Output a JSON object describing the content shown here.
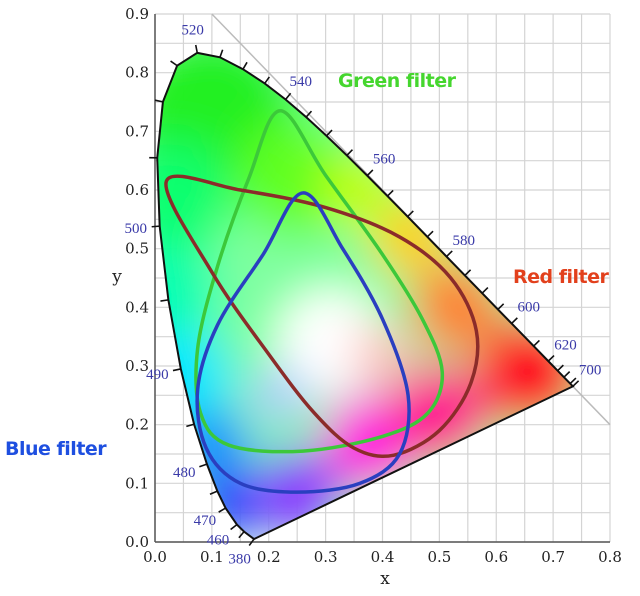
{
  "chart_data": {
    "type": "chromaticity-diagram",
    "xlabel": "x",
    "ylabel": "y",
    "xlim": [
      0,
      0.8
    ],
    "ylim": [
      0,
      0.9
    ],
    "xticks": [
      "0.0",
      "0.1",
      "0.2",
      "0.3",
      "0.4",
      "0.5",
      "0.6",
      "0.7",
      "0.8"
    ],
    "yticks": [
      "0.0",
      "0.1",
      "0.2",
      "0.3",
      "0.4",
      "0.5",
      "0.6",
      "0.7",
      "0.8",
      "0.9"
    ],
    "grid": true,
    "spectral_locus": [
      {
        "nm": 380,
        "x": 0.1741,
        "y": 0.005,
        "label": "380"
      },
      {
        "nm": 450,
        "x": 0.1566,
        "y": 0.0177
      },
      {
        "nm": 460,
        "x": 0.144,
        "y": 0.0297,
        "label": "460"
      },
      {
        "nm": 470,
        "x": 0.1241,
        "y": 0.0578,
        "label": "470"
      },
      {
        "nm": 475,
        "x": 0.1096,
        "y": 0.0868
      },
      {
        "nm": 480,
        "x": 0.0913,
        "y": 0.1327,
        "label": "480"
      },
      {
        "nm": 485,
        "x": 0.0687,
        "y": 0.2007
      },
      {
        "nm": 490,
        "x": 0.0454,
        "y": 0.295,
        "label": "490"
      },
      {
        "nm": 495,
        "x": 0.0235,
        "y": 0.4127
      },
      {
        "nm": 500,
        "x": 0.0082,
        "y": 0.5384,
        "label": "500"
      },
      {
        "nm": 505,
        "x": 0.0039,
        "y": 0.6548
      },
      {
        "nm": 510,
        "x": 0.0139,
        "y": 0.7502
      },
      {
        "nm": 515,
        "x": 0.0389,
        "y": 0.812
      },
      {
        "nm": 520,
        "x": 0.0743,
        "y": 0.8338,
        "label": "520"
      },
      {
        "nm": 525,
        "x": 0.1142,
        "y": 0.8262
      },
      {
        "nm": 530,
        "x": 0.1547,
        "y": 0.8059
      },
      {
        "nm": 535,
        "x": 0.1929,
        "y": 0.7816
      },
      {
        "nm": 540,
        "x": 0.2296,
        "y": 0.7543,
        "label": "540"
      },
      {
        "nm": 545,
        "x": 0.2658,
        "y": 0.7243
      },
      {
        "nm": 550,
        "x": 0.3016,
        "y": 0.6923
      },
      {
        "nm": 555,
        "x": 0.3373,
        "y": 0.6589
      },
      {
        "nm": 560,
        "x": 0.3731,
        "y": 0.6245,
        "label": "560"
      },
      {
        "nm": 565,
        "x": 0.4087,
        "y": 0.5896
      },
      {
        "nm": 570,
        "x": 0.4441,
        "y": 0.5547
      },
      {
        "nm": 575,
        "x": 0.4788,
        "y": 0.5202
      },
      {
        "nm": 580,
        "x": 0.5125,
        "y": 0.4866,
        "label": "580"
      },
      {
        "nm": 585,
        "x": 0.5448,
        "y": 0.4544
      },
      {
        "nm": 590,
        "x": 0.5752,
        "y": 0.4242
      },
      {
        "nm": 595,
        "x": 0.6029,
        "y": 0.3965
      },
      {
        "nm": 600,
        "x": 0.627,
        "y": 0.3725,
        "label": "600"
      },
      {
        "nm": 610,
        "x": 0.6658,
        "y": 0.334
      },
      {
        "nm": 620,
        "x": 0.6915,
        "y": 0.3083,
        "label": "620"
      },
      {
        "nm": 630,
        "x": 0.7079,
        "y": 0.292
      },
      {
        "nm": 640,
        "x": 0.719,
        "y": 0.2809
      },
      {
        "nm": 660,
        "x": 0.73,
        "y": 0.27
      },
      {
        "nm": 700,
        "x": 0.7347,
        "y": 0.2653,
        "label": "700"
      }
    ],
    "series": [
      {
        "name": "Green filter",
        "color": "#3cc83a",
        "points": [
          [
            0.22,
            0.735
          ],
          [
            0.3,
            0.625
          ],
          [
            0.4,
            0.49
          ],
          [
            0.47,
            0.38
          ],
          [
            0.505,
            0.29
          ],
          [
            0.48,
            0.22
          ],
          [
            0.4,
            0.18
          ],
          [
            0.26,
            0.155
          ],
          [
            0.13,
            0.165
          ],
          [
            0.08,
            0.22
          ],
          [
            0.075,
            0.33
          ],
          [
            0.11,
            0.47
          ],
          [
            0.165,
            0.62
          ]
        ]
      },
      {
        "name": "Red filter",
        "color": "#8b2c2a",
        "points": [
          [
            0.02,
            0.615
          ],
          [
            0.15,
            0.6
          ],
          [
            0.3,
            0.57
          ],
          [
            0.43,
            0.52
          ],
          [
            0.52,
            0.45
          ],
          [
            0.565,
            0.36
          ],
          [
            0.555,
            0.27
          ],
          [
            0.5,
            0.19
          ],
          [
            0.42,
            0.148
          ],
          [
            0.35,
            0.16
          ],
          [
            0.28,
            0.22
          ],
          [
            0.2,
            0.32
          ],
          [
            0.1,
            0.46
          ]
        ]
      },
      {
        "name": "Blue filter",
        "color": "#2a3fc0",
        "points": [
          [
            0.26,
            0.595
          ],
          [
            0.33,
            0.5
          ],
          [
            0.4,
            0.38
          ],
          [
            0.445,
            0.25
          ],
          [
            0.43,
            0.15
          ],
          [
            0.36,
            0.1
          ],
          [
            0.25,
            0.085
          ],
          [
            0.15,
            0.1
          ],
          [
            0.09,
            0.16
          ],
          [
            0.075,
            0.26
          ],
          [
            0.11,
            0.37
          ],
          [
            0.19,
            0.49
          ]
        ]
      }
    ],
    "annotations": {
      "green": {
        "text": "Green filter",
        "color": "#45d62e"
      },
      "red": {
        "text": "Red filter",
        "color": "#e2401c"
      },
      "blue": {
        "text": "Blue filter",
        "color": "#1e4fe0"
      }
    }
  }
}
